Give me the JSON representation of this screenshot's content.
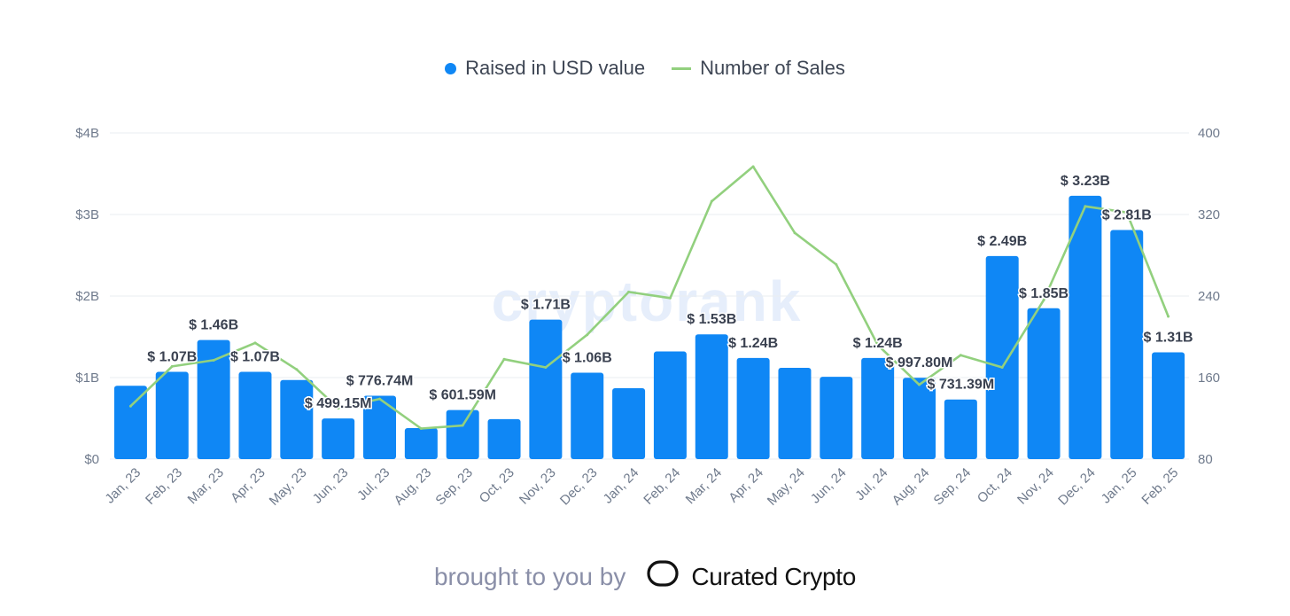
{
  "legend": {
    "bar_series": "Raised in USD value",
    "line_series": "Number of Sales"
  },
  "watermark": "cryptorank",
  "footer": {
    "prefix": "brought to you by",
    "brand": "Curated Crypto",
    "logo_icon": "double-c-logo-icon"
  },
  "colors": {
    "bar": "#0f87f5",
    "line": "#92d07e",
    "grid": "#e9edf2"
  },
  "chart_data": {
    "type": "bar",
    "categories": [
      "Jan, 23",
      "Feb, 23",
      "Mar, 23",
      "Apr, 23",
      "May, 23",
      "Jun, 23",
      "Jul, 23",
      "Aug, 23",
      "Sep, 23",
      "Oct, 23",
      "Nov, 23",
      "Dec, 23",
      "Jan, 24",
      "Feb, 24",
      "Mar, 24",
      "Apr, 24",
      "May, 24",
      "Jun, 24",
      "Jul, 24",
      "Aug, 24",
      "Sep, 24",
      "Oct, 24",
      "Nov, 24",
      "Dec, 24",
      "Jan, 25",
      "Feb, 25"
    ],
    "series": [
      {
        "name": "Raised in USD value",
        "type": "bar",
        "axis": "left",
        "values": [
          0.9,
          1.07,
          1.46,
          1.07,
          0.97,
          0.49915,
          0.77674,
          0.38,
          0.60159,
          0.49,
          1.71,
          1.06,
          0.87,
          1.32,
          1.53,
          1.24,
          1.12,
          1.01,
          1.24,
          0.9978,
          0.73139,
          2.49,
          1.85,
          3.23,
          2.81,
          1.31
        ],
        "labels": [
          "",
          "$ 1.07B",
          "$ 1.46B",
          "$ 1.07B",
          "",
          "$ 499.15M",
          "$ 776.74M",
          "",
          "$ 601.59M",
          "",
          "$ 1.71B",
          "$ 1.06B",
          "",
          "",
          "$ 1.53B",
          "$ 1.24B",
          "",
          "",
          "$ 1.24B",
          "$ 997.80M",
          "$ 731.39M",
          "$ 2.49B",
          "$ 1.85B",
          "$ 3.23B",
          "$ 2.81B",
          "$ 1.31B"
        ]
      },
      {
        "name": "Number of Sales",
        "type": "line",
        "axis": "right",
        "values": [
          132,
          171,
          177,
          194,
          168,
          130,
          139,
          110,
          113,
          178,
          170,
          202,
          244,
          238,
          333,
          367,
          302,
          271,
          192,
          153,
          182,
          170,
          236,
          328,
          322,
          220
        ]
      }
    ],
    "y_left": {
      "min": 0,
      "max": 4,
      "ticks": [
        "$0",
        "$1B",
        "$2B",
        "$3B",
        "$4B"
      ]
    },
    "y_right": {
      "min": 80,
      "max": 400,
      "ticks": [
        "80",
        "160",
        "240",
        "320",
        "400"
      ]
    },
    "grid": true,
    "legend_position": "top-center",
    "title": "",
    "xlabel": "",
    "ylabel": ""
  }
}
